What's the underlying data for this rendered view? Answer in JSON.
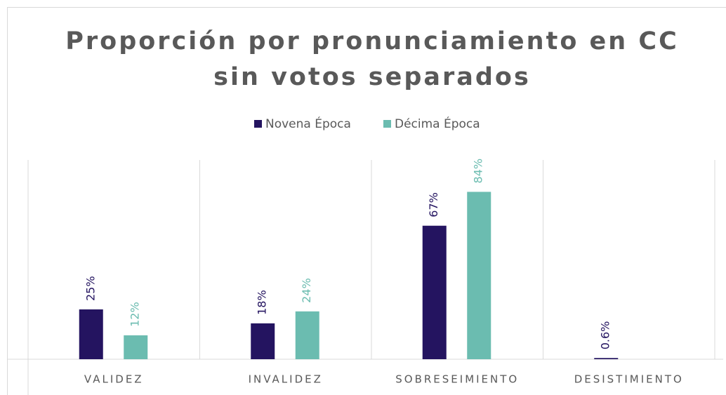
{
  "chart_data": {
    "type": "bar",
    "title": [
      "Proporción por pronunciamiento en CC",
      "sin votos separados"
    ],
    "categories": [
      "VALIDEZ",
      "INVALIDEZ",
      "SOBRESEIMIENTO",
      "DESISTIMIENTO"
    ],
    "series": [
      {
        "name": "Novena Época",
        "color": "#241460",
        "values": [
          25,
          18,
          67,
          0.6
        ],
        "value_labels": [
          "25%",
          "18%",
          "67%",
          "0.6%"
        ]
      },
      {
        "name": "Décima Época",
        "color": "#6bbcb0",
        "values": [
          12,
          24,
          84,
          null
        ],
        "value_labels": [
          "12%",
          "24%",
          "84%",
          null
        ]
      }
    ],
    "legend": "top"
  }
}
